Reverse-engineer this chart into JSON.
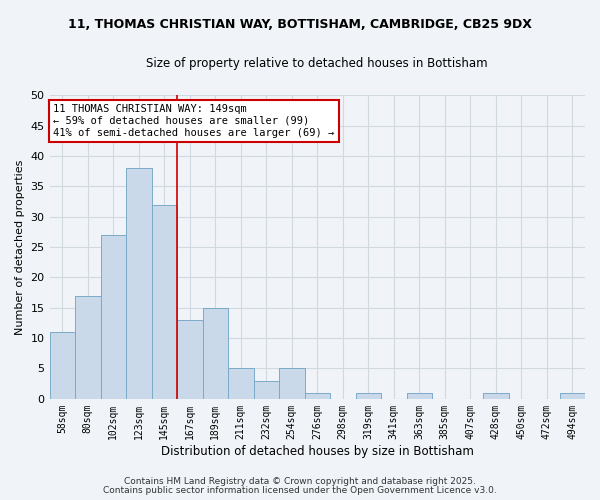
{
  "title_line1": "11, THOMAS CHRISTIAN WAY, BOTTISHAM, CAMBRIDGE, CB25 9DX",
  "title_line2": "Size of property relative to detached houses in Bottisham",
  "xlabel": "Distribution of detached houses by size in Bottisham",
  "ylabel": "Number of detached properties",
  "bar_labels": [
    "58sqm",
    "80sqm",
    "102sqm",
    "123sqm",
    "145sqm",
    "167sqm",
    "189sqm",
    "211sqm",
    "232sqm",
    "254sqm",
    "276sqm",
    "298sqm",
    "319sqm",
    "341sqm",
    "363sqm",
    "385sqm",
    "407sqm",
    "428sqm",
    "450sqm",
    "472sqm",
    "494sqm"
  ],
  "bar_heights": [
    11,
    17,
    27,
    38,
    32,
    13,
    15,
    5,
    3,
    5,
    1,
    0,
    1,
    0,
    1,
    0,
    0,
    1,
    0,
    0,
    1
  ],
  "bar_color": "#c9d9e9",
  "bar_edgecolor": "#7aaac8",
  "ylim": [
    0,
    50
  ],
  "yticks": [
    0,
    5,
    10,
    15,
    20,
    25,
    30,
    35,
    40,
    45,
    50
  ],
  "red_line_idx": 4.5,
  "red_line_color": "#cc0000",
  "annotation_line1": "11 THOMAS CHRISTIAN WAY: 149sqm",
  "annotation_line2": "← 59% of detached houses are smaller (99)",
  "annotation_line3": "41% of semi-detached houses are larger (69) →",
  "annotation_box_color": "#ffffff",
  "annotation_box_edgecolor": "#cc0000",
  "footer_line1": "Contains HM Land Registry data © Crown copyright and database right 2025.",
  "footer_line2": "Contains public sector information licensed under the Open Government Licence v3.0.",
  "background_color": "#f0f4f8",
  "grid_color": "#d0d8e0"
}
